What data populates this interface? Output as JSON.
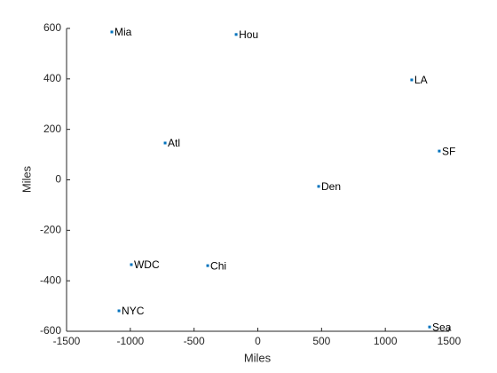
{
  "chart_data": {
    "type": "scatter",
    "xlabel": "Miles",
    "ylabel": "Miles",
    "labels": [
      "Mia",
      "Hou",
      "LA",
      "Atl",
      "SF",
      "Den",
      "WDC",
      "Chi",
      "NYC",
      "Sea"
    ],
    "x": [
      -1145,
      -170,
      1207,
      -727,
      1423,
      477,
      -992,
      -393,
      -1089,
      1347
    ],
    "values": [
      586,
      576,
      396,
      146,
      114,
      -26,
      -336,
      -340,
      -519,
      -583
    ],
    "color": "#0072bd",
    "xlim": [
      -1500,
      1500
    ],
    "xticks": [
      -1500,
      -1000,
      -500,
      0,
      500,
      1000,
      1500
    ],
    "ylim": [
      -600,
      600
    ],
    "yticks": [
      -600,
      -400,
      -200,
      0,
      200,
      400,
      600
    ]
  }
}
